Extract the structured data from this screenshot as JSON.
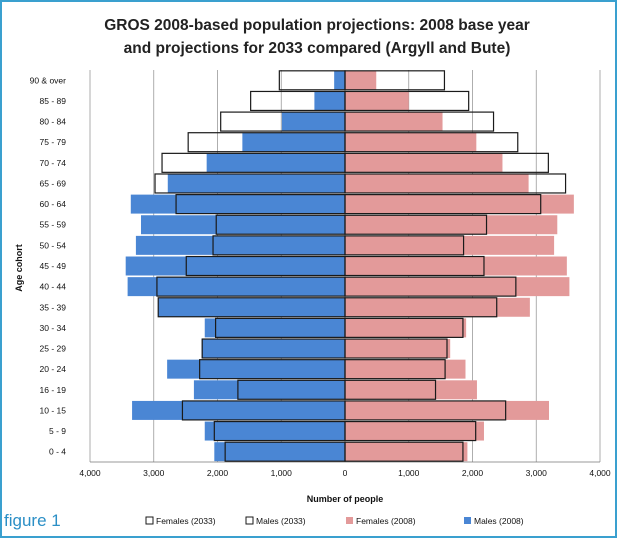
{
  "caption": "figure 1",
  "colors": {
    "males_2008": "#4a86d4",
    "females_2008": "#e39a9a",
    "outline_2033": "#1a1a1a",
    "grid": "#9a9a9a",
    "frame": "#3aa0cf",
    "caption": "#2b8fc6"
  },
  "chart_data": {
    "type": "bar",
    "orientation": "horizontal",
    "subtype": "population-pyramid",
    "title": "GROS 2008-based population projections: 2008 base year and projections for 2033 compared (Argyll and Bute)",
    "title_lines": [
      "GROS 2008-based population projections: 2008 base year",
      "and projections for 2033 compared (Argyll and Bute)"
    ],
    "xlabel": "Number of people",
    "ylabel": "Age cohort",
    "xlim": [
      -4000,
      4000
    ],
    "x_ticks": [
      -4000,
      -3000,
      -2000,
      -1000,
      0,
      1000,
      2000,
      3000,
      4000
    ],
    "x_tick_labels": [
      "4,000",
      "3,000",
      "2,000",
      "1,000",
      "0",
      "1,000",
      "2,000",
      "3,000",
      "4,000"
    ],
    "grid": "vertical",
    "legend_position": "bottom",
    "categories": [
      "0 - 4",
      "5 - 9",
      "10 - 15",
      "16 - 19",
      "20 - 24",
      "25 - 29",
      "30 - 34",
      "35 - 39",
      "40 - 44",
      "45 - 49",
      "50 - 54",
      "55 - 59",
      "60 - 64",
      "65 - 69",
      "70 - 74",
      "75 - 79",
      "80 - 84",
      "85 - 89",
      "90 & over"
    ],
    "series": [
      {
        "name": "Females (2033)",
        "side": "right",
        "style": "outline",
        "values": [
          1850,
          2050,
          2520,
          1420,
          1570,
          1600,
          1850,
          2380,
          2680,
          2180,
          1860,
          2220,
          3070,
          3460,
          3190,
          2710,
          2330,
          1940,
          1560
        ]
      },
      {
        "name": "Males (2033)",
        "side": "left",
        "style": "outline",
        "values": [
          1880,
          2050,
          2550,
          1680,
          2280,
          2240,
          2030,
          2930,
          2950,
          2490,
          2070,
          2020,
          2650,
          2980,
          2870,
          2460,
          1950,
          1480,
          1030
        ]
      },
      {
        "name": "Females (2008)",
        "side": "right",
        "style": "filled",
        "values": [
          1920,
          2180,
          3200,
          2070,
          1890,
          1650,
          1900,
          2900,
          3520,
          3480,
          3280,
          3330,
          3590,
          2880,
          2470,
          2060,
          1530,
          1000,
          490
        ]
      },
      {
        "name": "Males (2008)",
        "side": "left",
        "style": "filled",
        "values": [
          2050,
          2200,
          3340,
          2370,
          2790,
          2250,
          2200,
          2930,
          3410,
          3440,
          3280,
          3200,
          3360,
          2780,
          2170,
          1610,
          990,
          480,
          170
        ]
      }
    ]
  }
}
